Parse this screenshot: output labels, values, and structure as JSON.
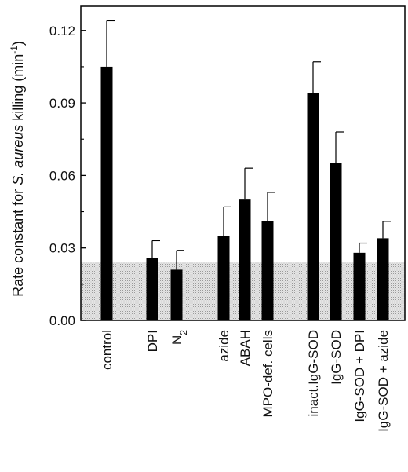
{
  "chart_data": {
    "type": "bar",
    "title": "",
    "xlabel": "",
    "ylabel": {
      "prefix": "Rate constant for ",
      "species": "S. aureus",
      "suffix": " killing  (min",
      "exponent": "-1",
      "close": ")"
    },
    "ylim": [
      0,
      0.13
    ],
    "yticks": [
      "0.00",
      "0.03",
      "0.06",
      "0.09",
      "0.12"
    ],
    "grid": false,
    "shaded_band": {
      "from": 0,
      "to": 0.024
    },
    "categories": [
      "control",
      "DPI",
      "N2",
      "azide",
      "ABAH",
      "MPO-def. cells",
      "inact.IgG-SOD",
      "IgG-SOD",
      "IgG-SOD + DPI",
      "IgG-SOD + azide"
    ],
    "values": [
      0.105,
      0.026,
      0.021,
      0.035,
      0.05,
      0.041,
      0.094,
      0.065,
      0.028,
      0.034
    ],
    "errors": [
      0.019,
      0.007,
      0.008,
      0.012,
      0.013,
      0.012,
      0.013,
      0.013,
      0.004,
      0.007
    ],
    "label_parts": {
      "N2": {
        "base": "N",
        "sub": "2"
      }
    }
  }
}
